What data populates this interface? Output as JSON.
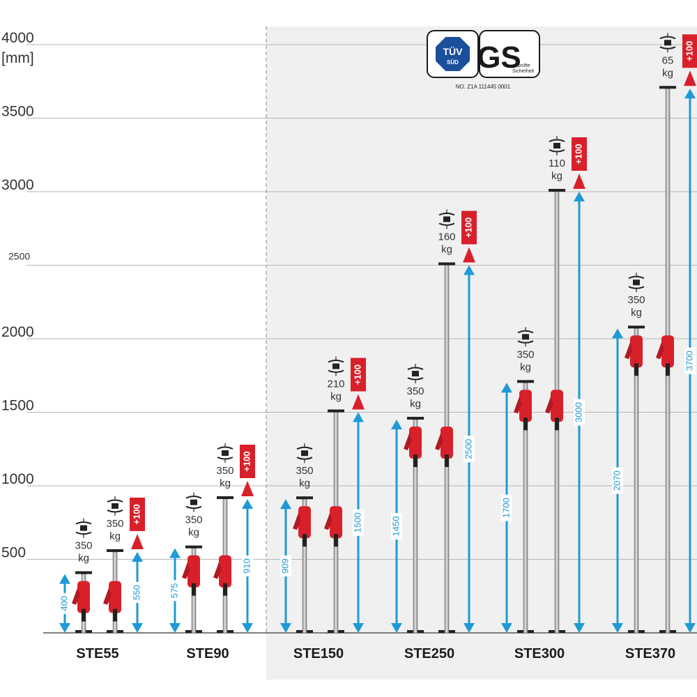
{
  "chart_data": {
    "type": "bar",
    "y_unit_label": "[mm]",
    "y_tick_labels": [
      "4000",
      "3500",
      "3000",
      "2500",
      "2000",
      "1500",
      "1000",
      "500"
    ],
    "ylim": [
      0,
      4000
    ],
    "grid": true,
    "categories": [
      "STE55",
      "STE90",
      "STE150",
      "STE250",
      "STE300",
      "STE370"
    ],
    "models": [
      {
        "name": "STE55",
        "min_height": 400,
        "max_height": 550,
        "min_label": "400",
        "max_label": "550",
        "load_min": "350",
        "load_max": "350",
        "load_unit": "kg",
        "extension": "+100"
      },
      {
        "name": "STE90",
        "min_height": 575,
        "max_height": 910,
        "min_label": "575",
        "max_label": "910",
        "load_min": "350",
        "load_max": "350",
        "load_unit": "kg",
        "extension": "+100"
      },
      {
        "name": "STE150",
        "min_height": 909,
        "max_height": 1500,
        "min_label": "909",
        "max_label": "1500",
        "load_min": "350",
        "load_max": "210",
        "load_unit": "kg",
        "extension": "+100"
      },
      {
        "name": "STE250",
        "min_height": 1450,
        "max_height": 2500,
        "min_label": "1450",
        "max_label": "2500",
        "load_min": "350",
        "load_max": "160",
        "load_unit": "kg",
        "extension": "+100"
      },
      {
        "name": "STE300",
        "min_height": 1700,
        "max_height": 3000,
        "min_label": "1700",
        "max_label": "3000",
        "load_min": "350",
        "load_max": "110",
        "load_unit": "kg",
        "extension": "+100"
      },
      {
        "name": "STE370",
        "min_height": 2070,
        "max_height": 3700,
        "min_label": "2070",
        "max_label": "3700",
        "load_min": "350",
        "load_max": "65",
        "load_unit": "kg",
        "extension": "+100"
      }
    ]
  },
  "certification": {
    "tuv_text": "TÜV",
    "tuv_sub": "SÜD",
    "gs_text": "GS",
    "gs_sub_1": "geprüfte",
    "gs_sub_2": "Sicherheit",
    "number": "NO. Z1A 111445 0001"
  },
  "colors": {
    "arrow_blue": "#1e9ad6",
    "red": "#d8202b",
    "grid": "#b5b5b5",
    "highlight_bg": "#f0f0f0"
  }
}
